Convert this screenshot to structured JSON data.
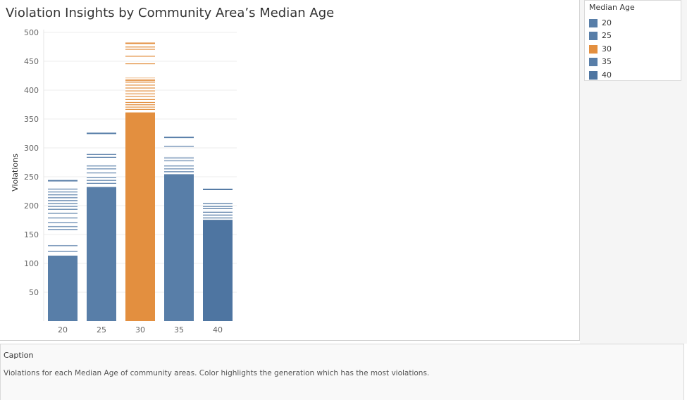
{
  "chart_data": {
    "type": "bar",
    "title": "Violation Insights by Community Area’s Median Age",
    "xlabel": "",
    "ylabel": "Violations",
    "ylim": [
      0,
      500
    ],
    "yticks": [
      50,
      100,
      150,
      200,
      250,
      300,
      350,
      400,
      450,
      500
    ],
    "grid": true,
    "categories": [
      "20",
      "25",
      "30",
      "35",
      "40"
    ],
    "values": [
      244,
      326,
      482,
      319,
      229
    ],
    "highlight_category": "30",
    "colors": [
      "#587ea8",
      "#587ea8",
      "#e38f3f",
      "#587ea8",
      "#4e75a1"
    ],
    "segment_lines": [
      [
        114,
        122,
        132,
        160,
        165,
        172,
        180,
        188,
        195,
        200,
        205,
        210,
        215,
        220,
        225,
        230
      ],
      [
        233,
        240,
        245,
        250,
        258,
        265,
        270,
        285,
        290
      ],
      [
        362,
        368,
        372,
        376,
        380,
        385,
        390,
        395,
        400,
        405,
        410,
        415,
        418,
        420,
        422,
        447,
        460,
        472,
        476
      ],
      [
        255,
        260,
        265,
        270,
        279,
        284,
        304
      ],
      [
        176,
        180,
        185,
        190,
        196,
        200,
        205
      ]
    ]
  },
  "legend": {
    "title": "Median Age",
    "placement": "top-right",
    "items": [
      {
        "label": "20",
        "color": "#587ea8"
      },
      {
        "label": "25",
        "color": "#587ea8"
      },
      {
        "label": "30",
        "color": "#e38f3f"
      },
      {
        "label": "35",
        "color": "#587ea8"
      },
      {
        "label": "40",
        "color": "#4e75a1"
      }
    ]
  },
  "caption": {
    "title": "Caption",
    "text": "Violations for each Median Age of community areas.  Color highlights the generation which has the most violations."
  }
}
